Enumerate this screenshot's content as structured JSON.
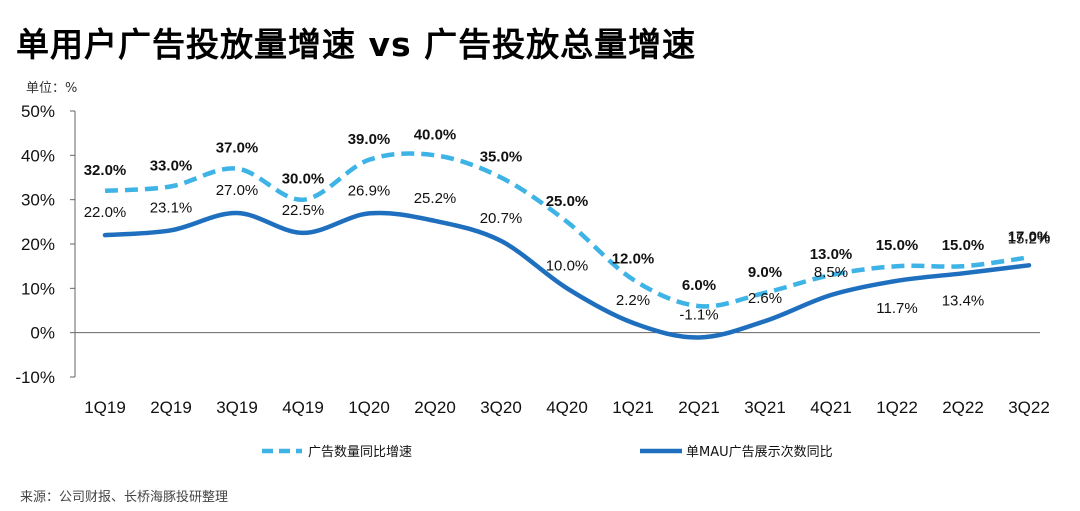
{
  "title": "单用户广告投放量增速 vs 广告投放总量增速",
  "source": "来源：公司财报、长桥海豚投研整理",
  "chart_data": {
    "type": "line",
    "y_unit_label": "单位：%",
    "categories": [
      "1Q19",
      "2Q19",
      "3Q19",
      "4Q19",
      "1Q20",
      "2Q20",
      "3Q20",
      "4Q20",
      "1Q21",
      "2Q21",
      "3Q21",
      "4Q21",
      "1Q22",
      "2Q22",
      "3Q22"
    ],
    "y_ticks": [
      "50%",
      "40%",
      "30%",
      "20%",
      "10%",
      "0%",
      "-10%"
    ],
    "ylim": [
      -10,
      50
    ],
    "series": [
      {
        "name": "广告数量同比增速",
        "style": "dashed",
        "color": "#3db3e6",
        "values": [
          32,
          33,
          37,
          30,
          39,
          40,
          35,
          25,
          12,
          6,
          9,
          13,
          15,
          15,
          17
        ],
        "labels": [
          "32.0%",
          "33.0%",
          "37.0%",
          "30.0%",
          "39.0%",
          "40.0%",
          "35.0%",
          "25.0%",
          "12.0%",
          "6.0%",
          "9.0%",
          "13.0%",
          "15.0%",
          "15.0%",
          "17.0%"
        ]
      },
      {
        "name": "单MAU广告展示次数同比",
        "style": "solid",
        "color": "#1f6fbf",
        "values": [
          22,
          23.1,
          27,
          22.5,
          26.9,
          25.2,
          20.7,
          10,
          2.2,
          -1.1,
          2.6,
          8.5,
          11.7,
          13.4,
          15.2
        ],
        "labels": [
          "22.0%",
          "23.1%",
          "27.0%",
          "22.5%",
          "26.9%",
          "25.2%",
          "20.7%",
          "10.0%",
          "2.2%",
          "-1.1%",
          "2.6%",
          "8.5%",
          "11.7%",
          "13.4%",
          "15.2%"
        ]
      }
    ]
  }
}
